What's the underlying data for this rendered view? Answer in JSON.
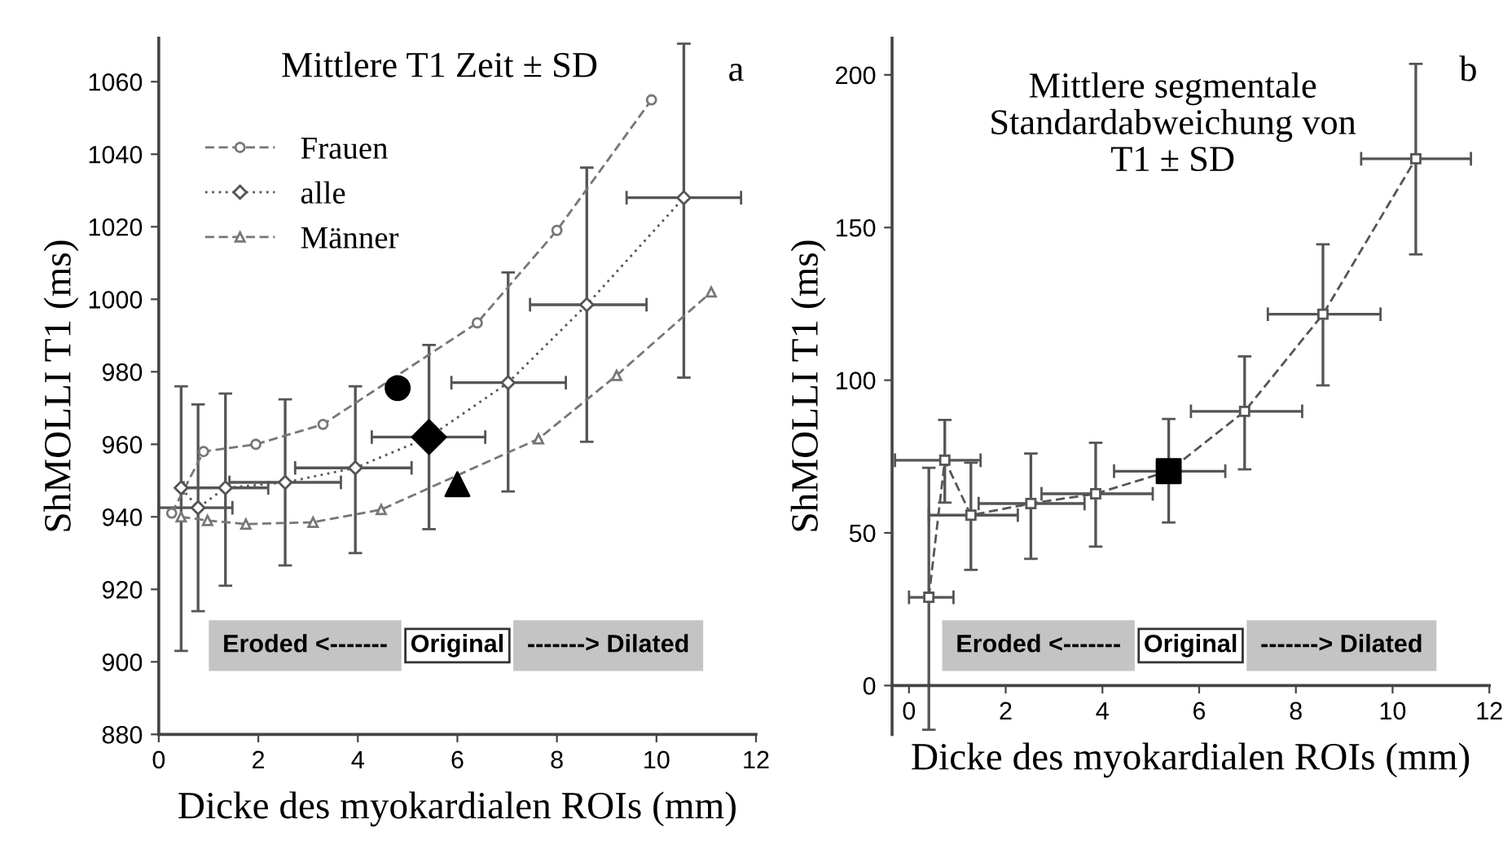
{
  "chart_data": [
    {
      "type": "line",
      "title": "Mittlere T1 Zeit ± SD",
      "xlabel": "Dicke des myokardialen ROIs (mm)",
      "ylabel": "ShMOLLI T1 (ms)",
      "annotations": [
        "a",
        "Eroded <-------",
        "Original",
        "-------> Dilated"
      ],
      "xlim": [
        0,
        12
      ],
      "xticks": [
        0,
        2,
        4,
        6,
        8,
        10,
        12
      ],
      "ylim": [
        880,
        1072
      ],
      "yticks": [
        880,
        900,
        920,
        940,
        960,
        980,
        1000,
        1020,
        1040,
        1060
      ],
      "grid": false,
      "legend": "top left",
      "series": [
        {
          "name": "Frauen",
          "color": "#777777",
          "marker": "circle",
          "line_style": "dashed",
          "x": [
            0.26,
            0.9,
            1.95,
            3.3,
            6.4,
            8.0,
            9.9
          ],
          "values": [
            941,
            958,
            960,
            965.5,
            993.5,
            1019,
            1055
          ]
        },
        {
          "name": "alle",
          "color": "#555555",
          "marker": "diamond",
          "line_style": "dotted",
          "x": [
            0.45,
            0.79,
            1.34,
            2.54,
            3.95,
            5.43,
            7.02,
            8.6,
            10.55
          ],
          "values": [
            948,
            942.5,
            948,
            949.5,
            953.5,
            962,
            977,
            998.5,
            1028
          ],
          "errors": [
            [
              903,
              976
            ],
            [
              914,
              971
            ],
            [
              921,
              974
            ],
            [
              926.6,
              972.4
            ],
            [
              930,
              976
            ],
            [
              936.6,
              987.4
            ],
            [
              947,
              1007.4
            ],
            [
              960.7,
              1036.3
            ],
            [
              978.4,
              1070.5
            ]
          ],
          "xerrors": [
            null,
            [
              0,
              1.48
            ],
            [
              0.5,
              2.2
            ],
            [
              1.42,
              3.66
            ],
            [
              2.74,
              5.08
            ],
            [
              4.28,
              6.56
            ],
            [
              5.88,
              8.18
            ],
            [
              7.46,
              9.8
            ],
            [
              9.4,
              11.7
            ]
          ]
        },
        {
          "name": "Männer",
          "color": "#777777",
          "marker": "triangle",
          "line_style": "dashed",
          "x": [
            0.45,
            0.98,
            1.75,
            3.1,
            4.47,
            7.63,
            9.2,
            11.1
          ],
          "values": [
            940,
            939,
            938,
            938.5,
            942,
            961.5,
            979,
            1002
          ]
        },
        {
          "type": "scatter",
          "color": "#000000",
          "marker": "circle",
          "x": [
            4.8
          ],
          "values": [
            975.5
          ]
        },
        {
          "type": "scatter",
          "color": "#000000",
          "marker": "diamond",
          "x": [
            5.43
          ],
          "values": [
            962
          ]
        },
        {
          "type": "scatter",
          "color": "#000000",
          "marker": "triangle",
          "x": [
            6.0
          ],
          "values": [
            949
          ]
        }
      ]
    },
    {
      "type": "line",
      "title": "Mittlere segmentale\nStandardabweichung von\nT1 ± SD",
      "xlabel": "Dicke des myokardialen ROIs (mm)",
      "ylabel": "ShMOLLI T1 (ms)",
      "annotations": [
        "b",
        "Eroded <-------",
        "Original",
        "-------> Dilated"
      ],
      "xlim": [
        -0.35,
        12
      ],
      "xticks": [
        0,
        2,
        4,
        6,
        8,
        10,
        12
      ],
      "ylim": [
        -16,
        212
      ],
      "yticks": [
        0,
        50,
        100,
        150,
        200
      ],
      "grid": false,
      "series": [
        {
          "color": "#555555",
          "marker": "square",
          "line_style": "dashed",
          "x": [
            0.41,
            0.74,
            1.28,
            2.52,
            3.86,
            5.37,
            6.94,
            8.56,
            10.48
          ],
          "values": [
            28.9,
            73.8,
            55.8,
            59.6,
            62.8,
            70.2,
            89.8,
            121.6,
            172.5
          ],
          "errors": [
            [
              -14.5,
              71.3
            ],
            [
              59.9,
              87
            ],
            [
              37.9,
              73
            ],
            [
              41.5,
              76
            ],
            [
              45.5,
              79.5
            ],
            [
              53.4,
              87.3
            ],
            [
              70.8,
              107.8
            ],
            [
              98.3,
              144.5
            ],
            [
              141.2,
              203.6
            ]
          ],
          "xerrors": [
            [
              0,
              0.92
            ],
            [
              -0.29,
              1.48
            ],
            [
              0.41,
              2.25
            ],
            [
              1.44,
              3.63
            ],
            [
              2.74,
              5.04
            ],
            [
              4.24,
              6.54
            ],
            [
              5.83,
              8.13
            ],
            [
              7.42,
              9.75
            ],
            [
              9.35,
              11.62
            ]
          ]
        },
        {
          "type": "scatter",
          "color": "#000000",
          "marker": "square",
          "x": [
            5.37
          ],
          "values": [
            70.2
          ]
        }
      ]
    }
  ]
}
